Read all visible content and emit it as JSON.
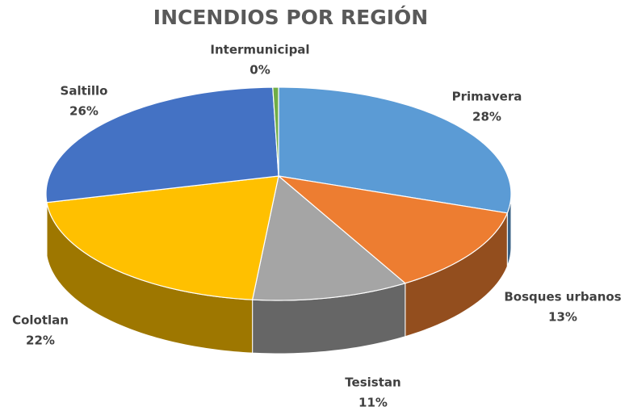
{
  "chart_data": {
    "type": "pie",
    "title": "INCENDIOS POR REGIÓN",
    "categories": [
      "Primavera",
      "Bosques urbanos",
      "Tesistan",
      "Colotlan",
      "Saltillo",
      "Intermunicipal"
    ],
    "values": [
      28,
      13,
      11,
      22,
      26,
      0.4
    ],
    "value_labels": [
      "28%",
      "13%",
      "11%",
      "22%",
      "26%",
      "0%"
    ],
    "colors": [
      "#5b9bd5",
      "#ed7d31",
      "#a5a5a5",
      "#ffc000",
      "#4472c4",
      "#70ad47"
    ]
  }
}
